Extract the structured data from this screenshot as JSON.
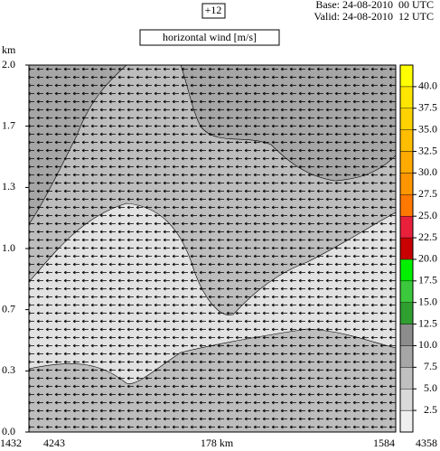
{
  "header": {
    "forecast_step": "+12",
    "base": "Base: 24-08-2010  00 UTC",
    "valid": "Valid: 24-08-2010  12 UTC",
    "field": "horizontal wind [m/s]"
  },
  "chart_data": {
    "type": "cross-section",
    "ylabel": "km",
    "ylim": [
      0,
      2
    ],
    "yticks": [
      {
        "value": 0,
        "label": "0.0"
      },
      {
        "value": 0.333,
        "label": "0.3"
      },
      {
        "value": 0.667,
        "label": "0.7"
      },
      {
        "value": 1,
        "label": "1.0"
      },
      {
        "value": 1.333,
        "label": "1.3"
      },
      {
        "value": 1.667,
        "label": "1.7"
      },
      {
        "value": 2,
        "label": "2.0"
      }
    ],
    "x_labels": [
      "1432",
      "4243",
      "178 km",
      "1584",
      "4358"
    ],
    "colorbar": {
      "levels": [
        0,
        2.5,
        5,
        7.5,
        10,
        12.5,
        15,
        17.5,
        20,
        22.5,
        25,
        27.5,
        30,
        32.5,
        35,
        37.5,
        40,
        42.5
      ],
      "colors": [
        "#efefef",
        "#d9d9d9",
        "#c0c0c0",
        "#a6a6a6",
        "#8c8c8c",
        "#2f9f2f",
        "#3cc83c",
        "#00f000",
        "#c80000",
        "#e8203c",
        "#ff7800",
        "#ff9600",
        "#ffaa00",
        "#ffbe00",
        "#ffd200",
        "#ffe600",
        "#ffff00"
      ],
      "ticks": [
        2.5,
        {
          "value": 5,
          "label": "5.0"
        },
        7.5,
        {
          "value": 10,
          "label": "10.0"
        },
        12.5,
        {
          "value": 15,
          "label": "15.0"
        },
        17.5,
        {
          "value": 20,
          "label": "20.0"
        },
        22.5,
        {
          "value": 25,
          "label": "25.0"
        },
        27.5,
        {
          "value": 30,
          "label": "30.0"
        },
        32.5,
        {
          "value": 35,
          "label": "35.0"
        },
        37.5,
        {
          "value": 40,
          "label": "40.0"
        }
      ]
    }
  }
}
